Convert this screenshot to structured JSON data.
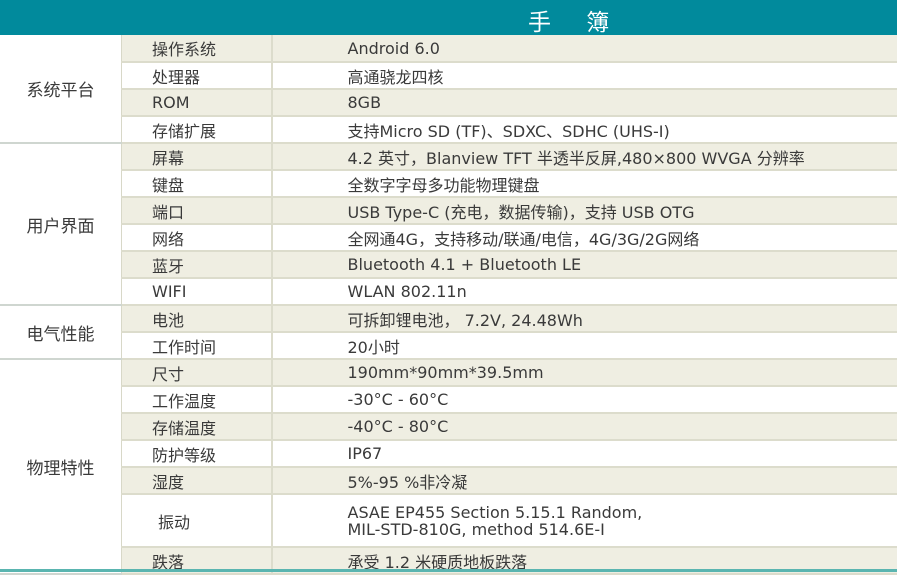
{
  "header": {
    "title": "手 簿",
    "color": "#018a9c"
  },
  "groups": [
    {
      "category": "系统平台",
      "rows": [
        {
          "label": "操作系统",
          "value": "Android 6.0"
        },
        {
          "label": "处理器",
          "value": "高通骁龙四核"
        },
        {
          "label": "ROM",
          "value": "8GB"
        },
        {
          "label": "存储扩展",
          "value": "支持Micro SD (TF)、SDXC、SDHC (UHS-I)"
        }
      ]
    },
    {
      "category": "用户界面",
      "rows": [
        {
          "label": "屏幕",
          "value": "4.2 英寸，Blanview TFT 半透半反屏,480×800 WVGA 分辨率"
        },
        {
          "label": "键盘",
          "value": "全数字字母多功能物理键盘"
        },
        {
          "label": "端口",
          "value": "USB Type-C (充电，数据传输)，支持 USB OTG"
        },
        {
          "label": "网络",
          "value": "全网通4G，支持移动/联通/电信，4G/3G/2G网络"
        },
        {
          "label": "蓝牙",
          "value": "Bluetooth 4.1 + Bluetooth LE"
        },
        {
          "label": "WIFI",
          "value": "WLAN 802.11n"
        }
      ]
    },
    {
      "category": "电气性能",
      "rows": [
        {
          "label": "电池",
          "value": "可拆卸锂电池， 7.2V, 24.48Wh"
        },
        {
          "label": "工作时间",
          "value": "20小时"
        }
      ]
    },
    {
      "category": "物理特性",
      "rows": [
        {
          "label": "尺寸",
          "value": "190mm*90mm*39.5mm"
        },
        {
          "label": "工作温度",
          "value": "-30°C - 60°C"
        },
        {
          "label": "存储温度",
          "value": "-40°C - 80°C"
        },
        {
          "label": "防护等级",
          "value": "IP67"
        },
        {
          "label": "湿度",
          "value": "5%-95 %非冷凝"
        },
        {
          "label": "振动",
          "value": "ASAE EP455 Section 5.15.1 Random,",
          "value2": "MIL-STD-810G, method 514.6E-I"
        },
        {
          "label": "跌落",
          "value": "承受 1.2 米硬质地板跌落"
        }
      ]
    }
  ]
}
